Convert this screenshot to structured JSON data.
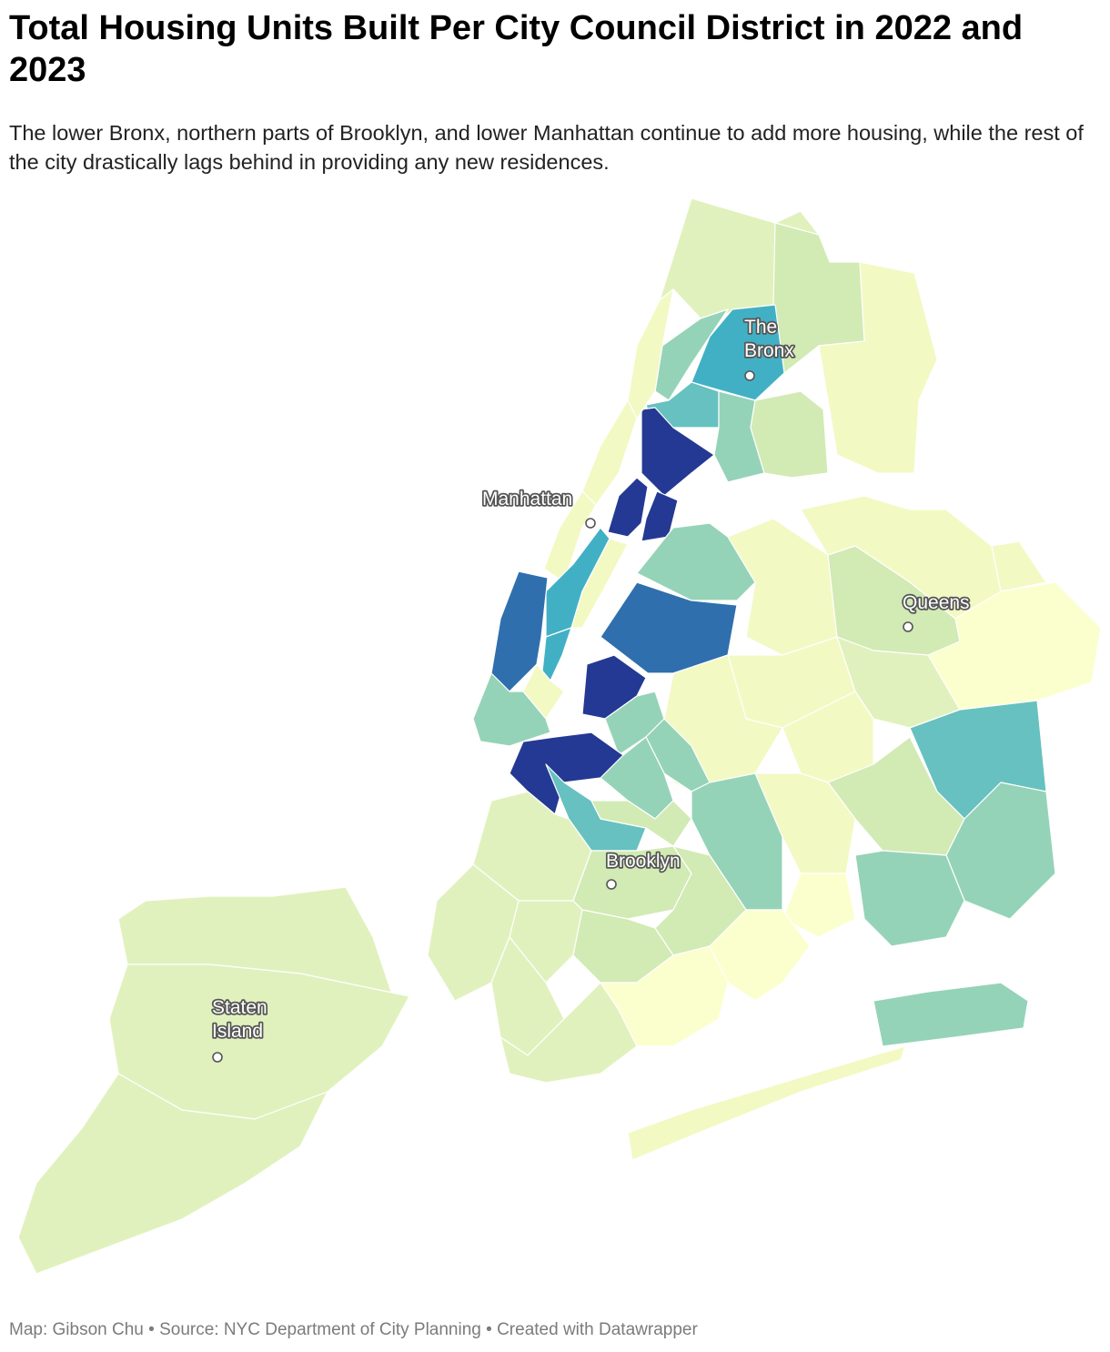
{
  "title": "Total Housing Units Built Per City Council District in 2022 and 2023",
  "subtitle": "The lower Bronx, northern parts of Brooklyn, and lower Manhattan continue to add more housing, while the rest of the city drastically lags behind in providing any new residences.",
  "footer": {
    "map_credit": "Map: Gibson Chu",
    "separator": " • ",
    "source": "Source: NYC Department of City Planning",
    "created_with": "Created with Datawrapper"
  },
  "colors": {
    "very_low": "#fbffcd",
    "low": "#f3f9c3",
    "low_mid": "#e1f1bd",
    "mid_low": "#d2eab4",
    "mid": "#95d3b8",
    "mid_high": "#66c1c0",
    "high": "#42b0c4",
    "higher": "#2f6fae",
    "highest": "#243993"
  },
  "place_labels": [
    {
      "id": "bronx",
      "lines": [
        "The",
        "Bronx"
      ]
    },
    {
      "id": "manhattan",
      "lines": [
        "Manhattan"
      ]
    },
    {
      "id": "queens",
      "lines": [
        "Queens"
      ]
    },
    {
      "id": "brooklyn",
      "lines": [
        "Brooklyn"
      ]
    },
    {
      "id": "staten-island",
      "lines": [
        "Staten",
        "Island"
      ]
    }
  ]
}
